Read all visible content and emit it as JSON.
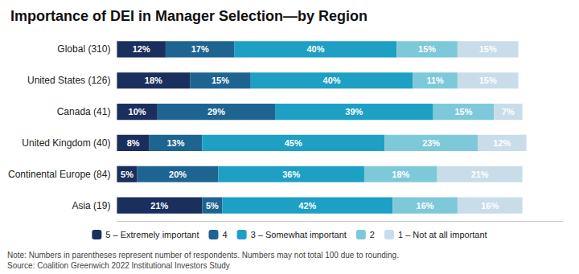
{
  "chart_data": {
    "type": "bar",
    "orientation": "horizontal",
    "stacked": true,
    "title": "Importance of DEI in Manager Selection—by Region",
    "categories": [
      "Global (310)",
      "United States (126)",
      "Canada (41)",
      "United Kingdom (40)",
      "Continental Europe (84)",
      "Asia (19)"
    ],
    "series": [
      {
        "name": "5 – Extremely important",
        "color": "#1b2f5e",
        "values": [
          12,
          18,
          10,
          8,
          5,
          21
        ],
        "value_labels": [
          "12%",
          "18%",
          "10%",
          "8%",
          "5%",
          "21%"
        ]
      },
      {
        "name": "4",
        "color": "#1e6491",
        "values": [
          17,
          15,
          29,
          13,
          20,
          5
        ],
        "value_labels": [
          "17%",
          "15%",
          "29%",
          "13%",
          "20%",
          "5%"
        ]
      },
      {
        "name": "3 – Somewhat important",
        "color": "#1da0c3",
        "values": [
          40,
          40,
          39,
          45,
          36,
          42
        ],
        "value_labels": [
          "40%",
          "40%",
          "39%",
          "45%",
          "36%",
          "42%"
        ]
      },
      {
        "name": "2",
        "color": "#7ec9d9",
        "values": [
          15,
          11,
          15,
          23,
          18,
          16
        ],
        "value_labels": [
          "15%",
          "11%",
          "15%",
          "23%",
          "18%",
          "16%"
        ]
      },
      {
        "name": "1 – Not at all important",
        "color": "#c8dde9",
        "values": [
          15,
          15,
          7,
          12,
          21,
          16
        ],
        "value_labels": [
          "15%",
          "15%",
          "7%",
          "12%",
          "21%",
          "16%"
        ]
      }
    ],
    "xlim": [
      0,
      110
    ],
    "tick_labels": "y",
    "data_labels": true,
    "grid": false,
    "legend": "bottom",
    "annotations": [
      "Note: Numbers in parentheses represent number of respondents. Numbers may not total 100 due to rounding.",
      "Source: Coalition Greenwich 2022 Institutional Investors Study"
    ]
  }
}
